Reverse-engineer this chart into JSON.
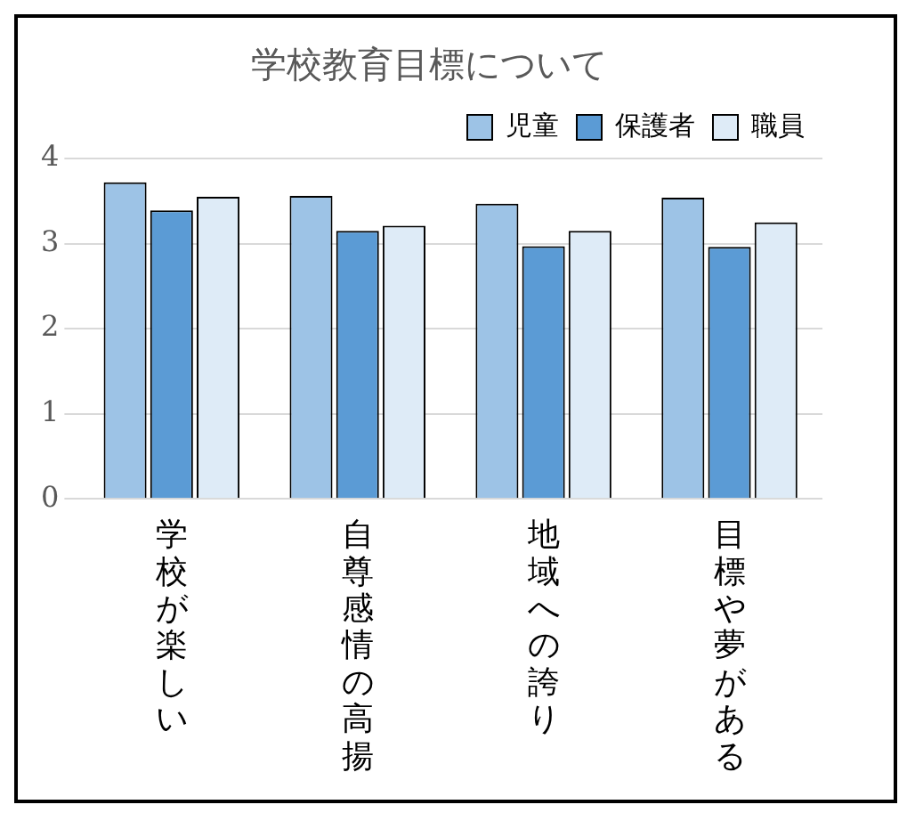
{
  "chart_data": {
    "type": "bar",
    "title": "学校教育目標について",
    "categories": [
      "学校が楽しい",
      "自尊感情の高揚",
      "地域への誇り",
      "目標や夢がある"
    ],
    "series": [
      {
        "name": "児童",
        "color": "#9dc3e6",
        "values": [
          3.72,
          3.56,
          3.47,
          3.54
        ]
      },
      {
        "name": "保護者",
        "color": "#5b9bd5",
        "values": [
          3.39,
          3.15,
          2.97,
          2.96
        ]
      },
      {
        "name": "職員",
        "color": "#deebf7",
        "values": [
          3.55,
          3.21,
          3.15,
          3.25
        ]
      }
    ],
    "ylim": [
      0,
      4
    ],
    "yticks": [
      0,
      1,
      2,
      3,
      4
    ],
    "grid": "y",
    "legend": "top right"
  }
}
